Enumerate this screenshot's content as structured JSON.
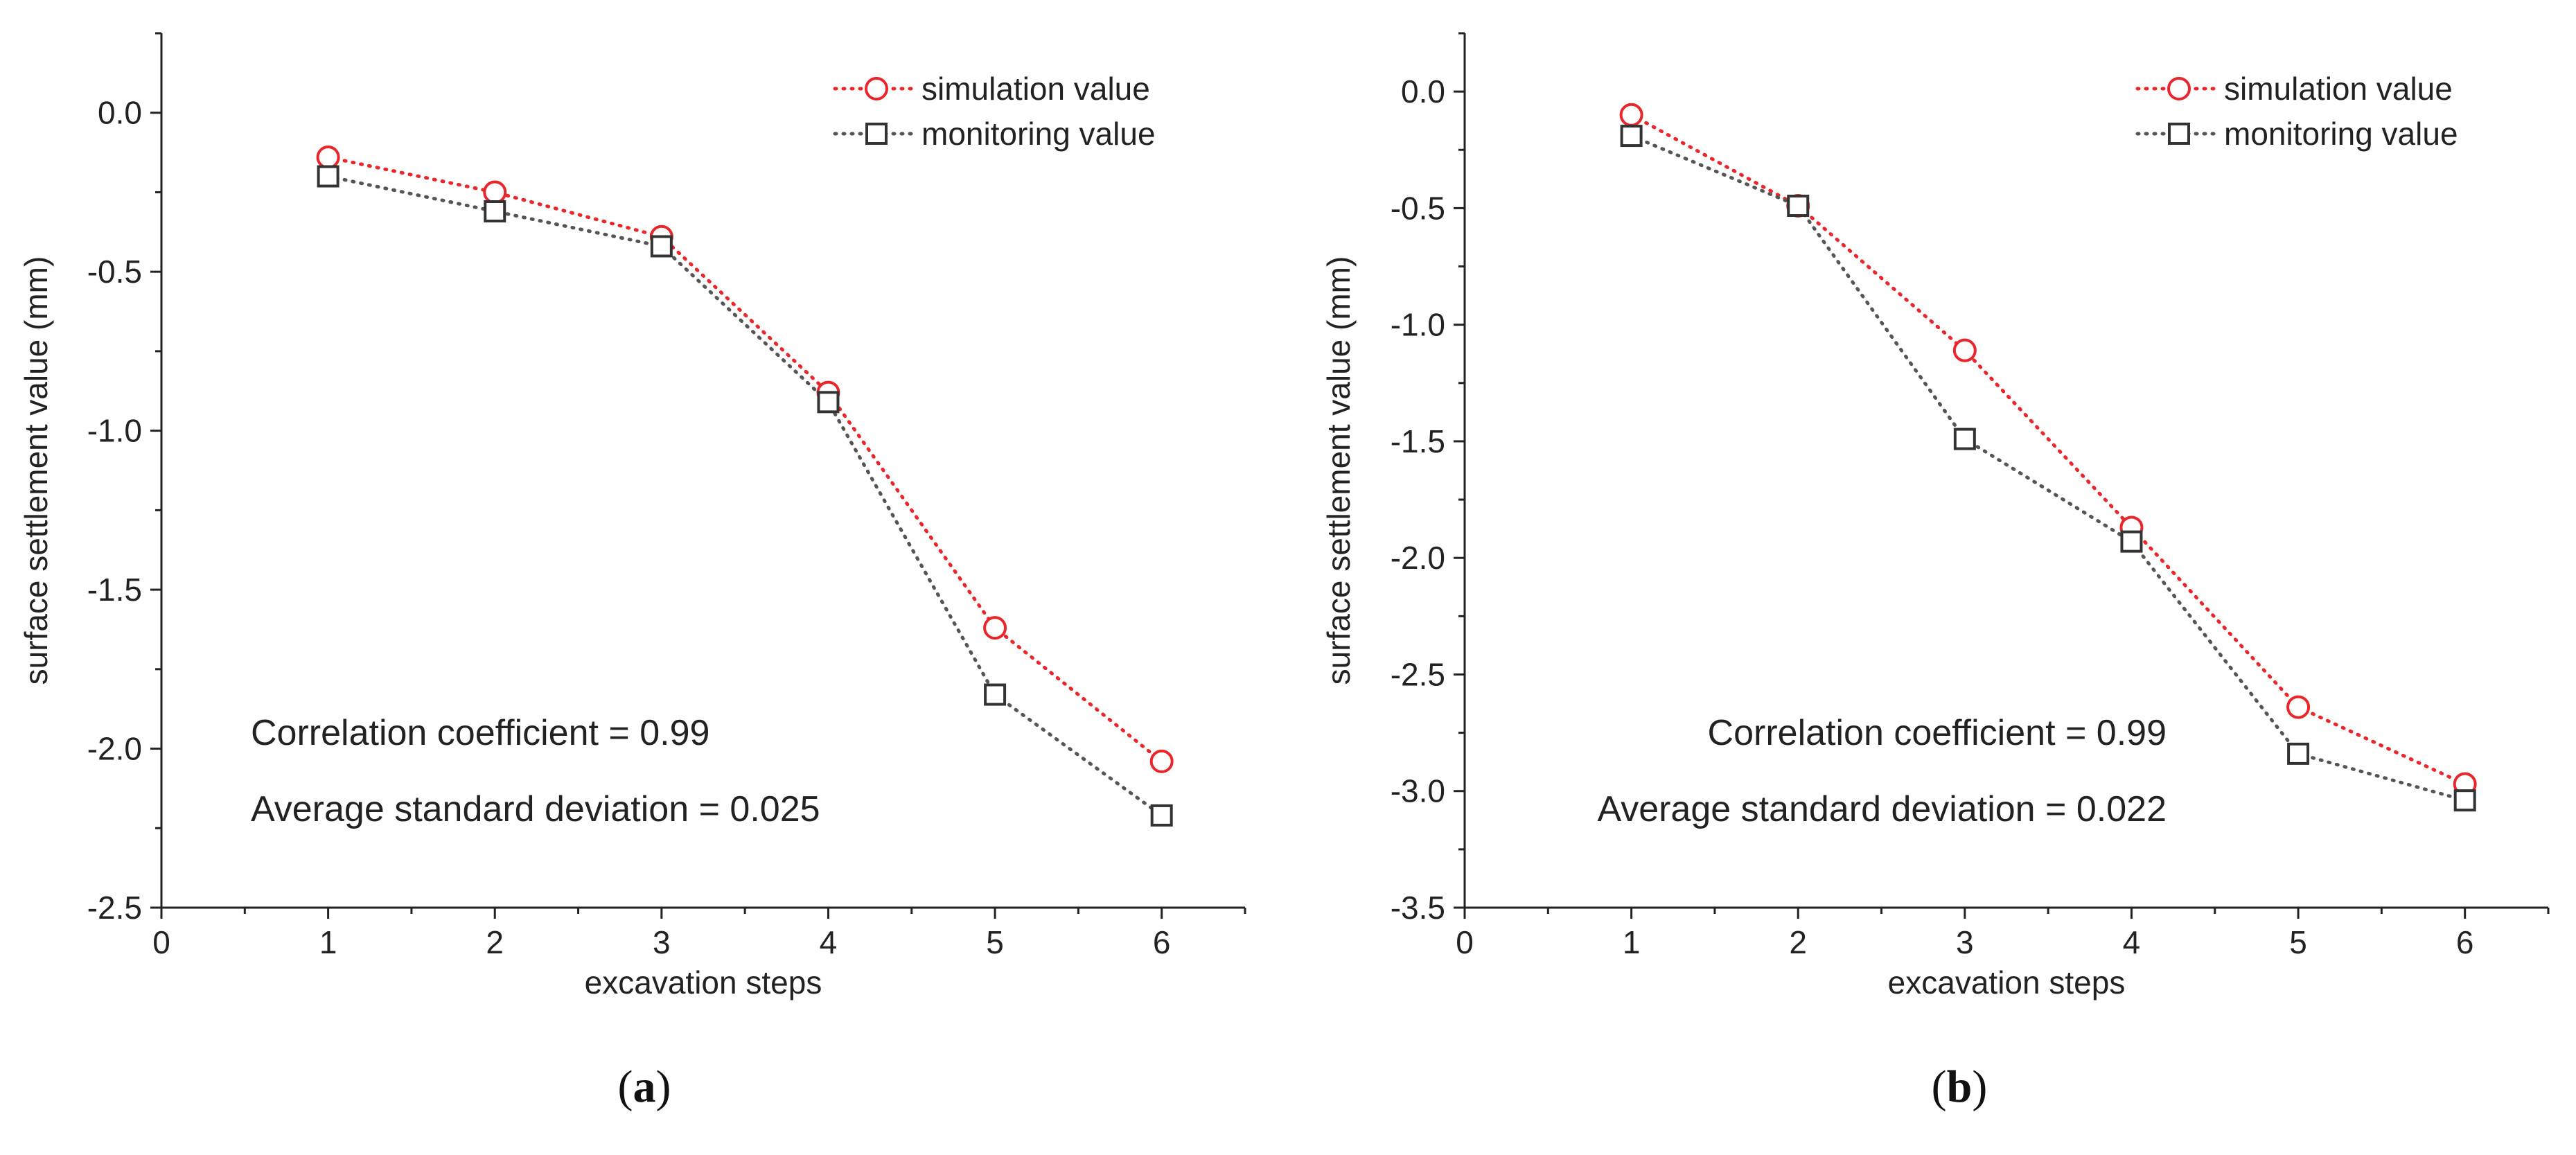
{
  "chart_data": [
    {
      "type": "line",
      "panel_label": "a",
      "xlabel": "excavation steps",
      "ylabel": "surface settlement value (mm)",
      "xlim": [
        0,
        6.5
      ],
      "ylim": [
        -2.5,
        0.25
      ],
      "x_ticks": [
        "0",
        "1",
        "2",
        "3",
        "4",
        "5",
        "6"
      ],
      "y_ticks": [
        "0.0",
        "-0.5",
        "-1.0",
        "-1.5",
        "-2.0",
        "-2.5"
      ],
      "x": [
        1,
        2,
        3,
        4,
        5,
        6
      ],
      "series": [
        {
          "name": "simulation value",
          "values": [
            -0.14,
            -0.25,
            -0.39,
            -0.88,
            -1.62,
            -2.04
          ],
          "color": "#e8262b",
          "marker": "circle"
        },
        {
          "name": "monitoring value",
          "values": [
            -0.2,
            -0.31,
            -0.42,
            -0.91,
            -1.83,
            -2.21
          ],
          "color": "#555555",
          "marker": "square"
        }
      ],
      "legend_position": "top-right",
      "annotations": [
        "Correlation coefficient = 0.99",
        "Average standard deviation = 0.025"
      ]
    },
    {
      "type": "line",
      "panel_label": "b",
      "xlabel": "excavation steps",
      "ylabel": "surface settlement value (mm)",
      "xlim": [
        0,
        6.5
      ],
      "ylim": [
        -3.5,
        0.25
      ],
      "x_ticks": [
        "0",
        "1",
        "2",
        "3",
        "4",
        "5",
        "6"
      ],
      "y_ticks": [
        "0.0",
        "-0.5",
        "-1.0",
        "-1.5",
        "-2.0",
        "-2.5",
        "-3.0",
        "-3.5"
      ],
      "x": [
        1,
        2,
        3,
        4,
        5,
        6
      ],
      "series": [
        {
          "name": "simulation value",
          "values": [
            -0.1,
            -0.49,
            -1.11,
            -1.87,
            -2.64,
            -2.97
          ],
          "color": "#e8262b",
          "marker": "circle"
        },
        {
          "name": "monitoring value",
          "values": [
            -0.19,
            -0.49,
            -1.49,
            -1.93,
            -2.84,
            -3.04
          ],
          "color": "#555555",
          "marker": "square"
        }
      ],
      "legend_position": "top-right",
      "annotations": [
        "Correlation coefficient = 0.99",
        "Average standard deviation = 0.022"
      ]
    }
  ]
}
